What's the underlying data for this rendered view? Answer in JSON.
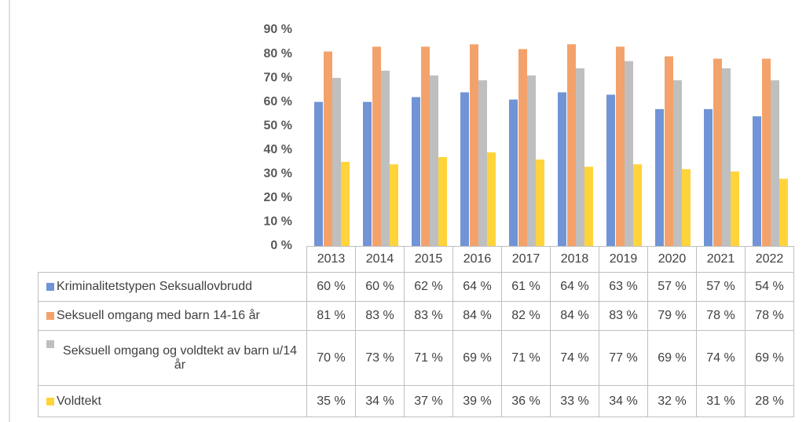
{
  "chart_data": {
    "type": "bar",
    "categories": [
      "2013",
      "2014",
      "2015",
      "2016",
      "2017",
      "2018",
      "2019",
      "2020",
      "2021",
      "2022"
    ],
    "series": [
      {
        "name": "Kriminalitetstypen Seksuallovbrudd",
        "color": "#7094d6",
        "values": [
          60,
          60,
          62,
          64,
          61,
          64,
          63,
          57,
          57,
          54
        ],
        "value_labels": [
          "60 %",
          "60 %",
          "62 %",
          "64 %",
          "61 %",
          "64 %",
          "63 %",
          "57 %",
          "57 %",
          "54 %"
        ]
      },
      {
        "name": "Seksuell omgang  med barn 14-16 år",
        "color": "#f4a26b",
        "values": [
          81,
          83,
          83,
          84,
          82,
          84,
          83,
          79,
          78,
          78
        ],
        "value_labels": [
          "81 %",
          "83 %",
          "83 %",
          "84 %",
          "82 %",
          "84 %",
          "83 %",
          "79 %",
          "78 %",
          "78 %"
        ]
      },
      {
        "name": "Seksuell omgang og voldtekt av barn u/14 år",
        "color": "#bfbfbf",
        "values": [
          70,
          73,
          71,
          69,
          71,
          74,
          77,
          69,
          74,
          69
        ],
        "value_labels": [
          "70 %",
          "73 %",
          "71 %",
          "69 %",
          "71 %",
          "74 %",
          "77 %",
          "69 %",
          "74 %",
          "69 %"
        ]
      },
      {
        "name": "Voldtekt",
        "color": "#ffd43b",
        "values": [
          35,
          34,
          37,
          39,
          36,
          33,
          34,
          32,
          31,
          28
        ],
        "value_labels": [
          "35 %",
          "34 %",
          "37 %",
          "39 %",
          "36 %",
          "33 %",
          "34 %",
          "32 %",
          "31 %",
          "28 %"
        ]
      }
    ],
    "ylim": [
      0,
      90
    ],
    "yticks": [
      {
        "value": 0,
        "label": "0 %"
      },
      {
        "value": 10,
        "label": "10 %"
      },
      {
        "value": 20,
        "label": "20 %"
      },
      {
        "value": 30,
        "label": "30 %"
      },
      {
        "value": 40,
        "label": "40 %"
      },
      {
        "value": 50,
        "label": "50 %"
      },
      {
        "value": 60,
        "label": "60 %"
      },
      {
        "value": 70,
        "label": "70 %"
      },
      {
        "value": 80,
        "label": "80 %"
      },
      {
        "value": 90,
        "label": "90 %"
      }
    ],
    "legend": "table"
  }
}
